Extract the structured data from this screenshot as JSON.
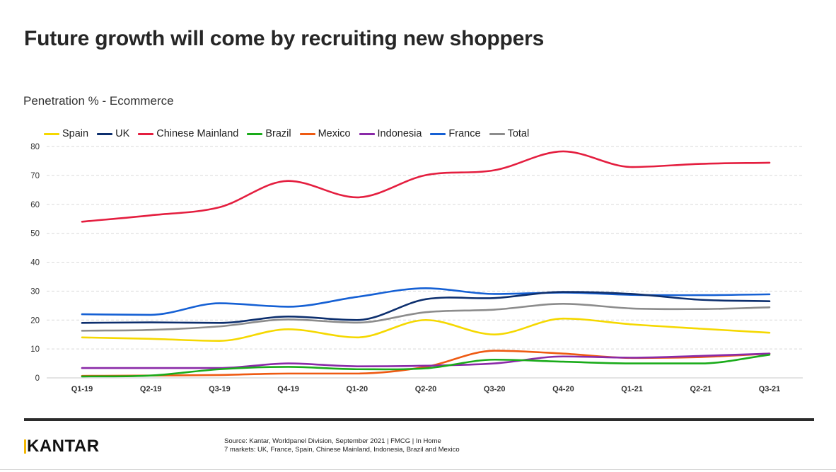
{
  "page": {
    "title": "Future growth will come by recruiting new shoppers",
    "subtitle": "Penetration % - Ecommerce",
    "logo": "KANTAR",
    "source_line1": "Source: Kantar, Worldpanel Division, September 2021 | FMCG | In Home",
    "source_line2": "7 markets: UK, France, Spain, Chinese Mainland, Indonesia, Brazil and Mexico"
  },
  "chart_data": {
    "type": "line",
    "title": "Penetration % - Ecommerce",
    "categories": [
      "Q1-19",
      "Q2-19",
      "Q3-19",
      "Q4-19",
      "Q1-20",
      "Q2-20",
      "Q3-20",
      "Q4-20",
      "Q1-21",
      "Q2-21",
      "Q3-21"
    ],
    "ylim": [
      0,
      80
    ],
    "yticks": [
      0,
      10,
      20,
      30,
      40,
      50,
      60,
      70,
      80
    ],
    "grid": true,
    "legend_position": "top-left",
    "series": [
      {
        "name": "Spain",
        "color": "#f5d800",
        "values": [
          14,
          13.5,
          12.8,
          16.8,
          14,
          20,
          15,
          20.5,
          18.5,
          17,
          15.6
        ]
      },
      {
        "name": "UK",
        "color": "#0d2f6e",
        "values": [
          19,
          19.2,
          19,
          21.2,
          20,
          27.2,
          27.6,
          29.7,
          29,
          27,
          26.5
        ]
      },
      {
        "name": "Chinese Mainland",
        "color": "#e41e3f",
        "values": [
          54,
          56.2,
          59,
          68.1,
          62.4,
          70.1,
          71.8,
          78.3,
          72.9,
          74,
          74.4
        ]
      },
      {
        "name": "Brazil",
        "color": "#1aab1a",
        "values": [
          0.5,
          0.8,
          3,
          3.8,
          3,
          3.3,
          6.3,
          5.6,
          5,
          5,
          8
        ]
      },
      {
        "name": "Mexico",
        "color": "#ee5a12",
        "values": [
          0.7,
          0.8,
          1,
          1.5,
          1.5,
          3.8,
          9.4,
          8.4,
          6.9,
          7.2,
          8.4
        ]
      },
      {
        "name": "Indonesia",
        "color": "#8a2aa8",
        "values": [
          3.4,
          3.4,
          3.4,
          5,
          4,
          4.2,
          5,
          7.4,
          7,
          7.6,
          8.4
        ]
      },
      {
        "name": "France",
        "color": "#1560d4",
        "values": [
          22,
          21.8,
          25.8,
          24.6,
          28,
          31,
          29,
          29.5,
          28.7,
          28.6,
          28.9
        ]
      },
      {
        "name": "Total",
        "color": "#8c8c8c",
        "values": [
          16.3,
          16.6,
          17.8,
          20.2,
          19.1,
          22.7,
          23.6,
          25.6,
          24,
          23.8,
          24.4
        ]
      }
    ]
  }
}
